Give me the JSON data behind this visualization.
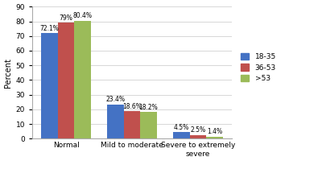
{
  "categories": [
    "Normal",
    "Mild to moderate",
    "Severe to extremely\nsevere"
  ],
  "groups": [
    "18-35",
    "36-53",
    ">53"
  ],
  "values": [
    [
      72.1,
      79.0,
      80.4
    ],
    [
      23.4,
      18.6,
      18.2
    ],
    [
      4.5,
      2.5,
      1.4
    ]
  ],
  "labels": [
    [
      "72.1%",
      "79%",
      "80.4%"
    ],
    [
      "23.4%",
      "18.6%",
      "18.2%"
    ],
    [
      "4.5%",
      "2.5%",
      "1.4%"
    ]
  ],
  "colors": [
    "#4472c4",
    "#c0504d",
    "#9bbb59"
  ],
  "ylabel": "Percent",
  "ylim": [
    0,
    90
  ],
  "yticks": [
    0,
    10,
    20,
    30,
    40,
    50,
    60,
    70,
    80,
    90
  ],
  "bar_width": 0.25,
  "legend_labels": [
    "18-35",
    "36-53",
    ">53"
  ],
  "background_color": "#ffffff",
  "grid_color": "#c8c8c8"
}
